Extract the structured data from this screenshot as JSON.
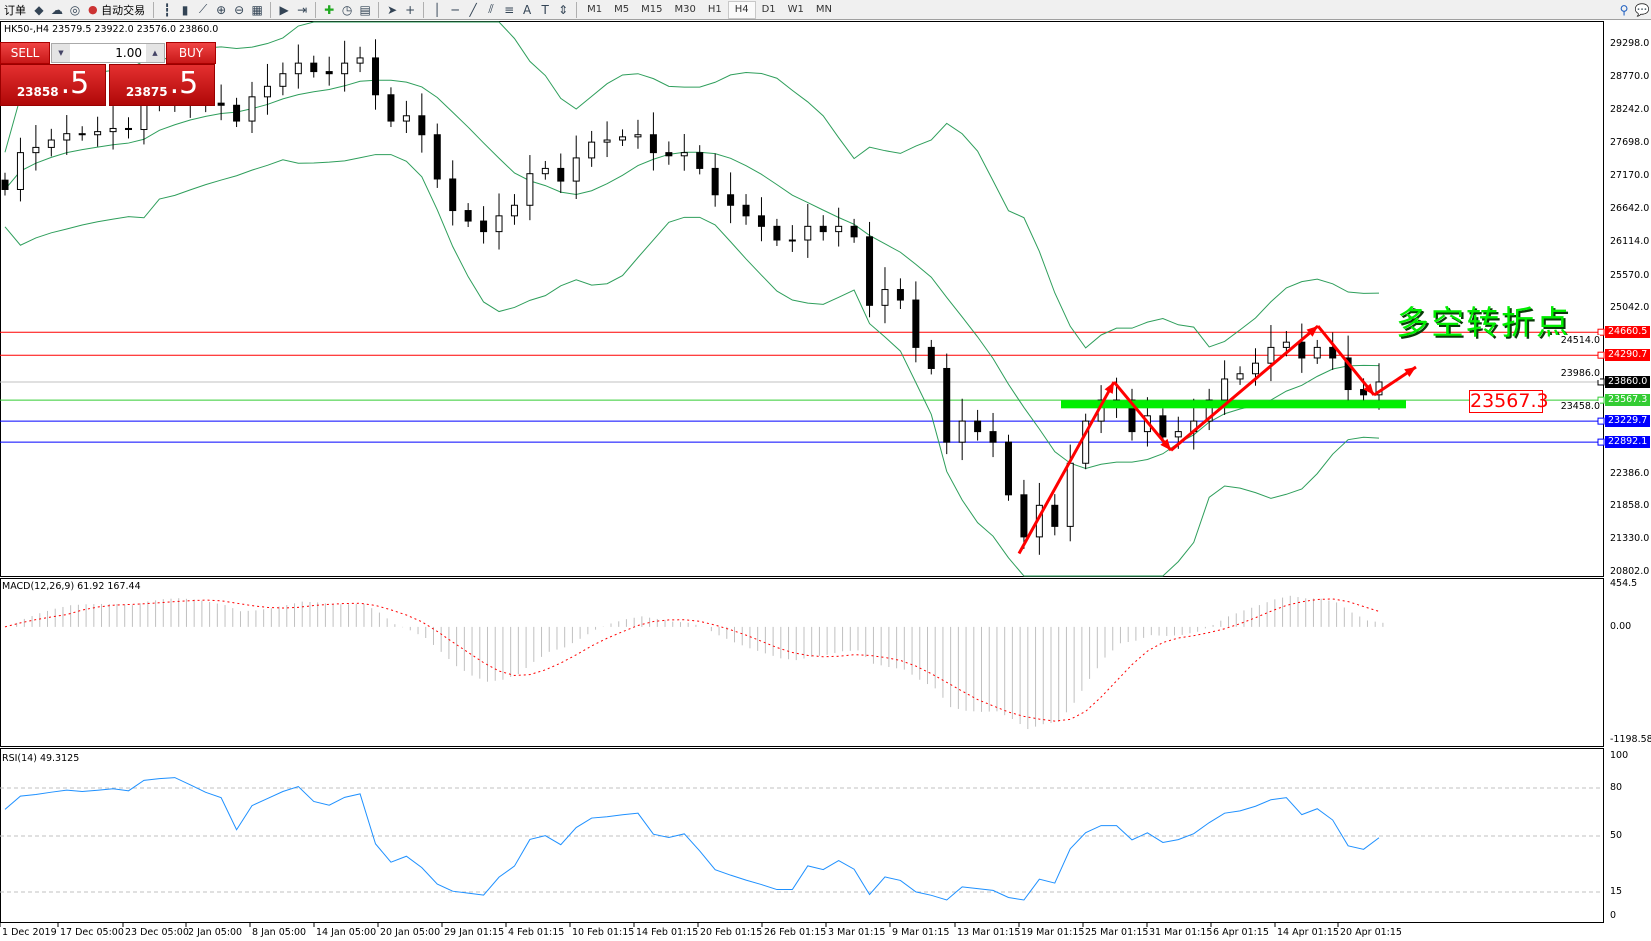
{
  "toolbar": {
    "new_order": "订单",
    "auto_trading": "自动交易",
    "timeframes": [
      "M1",
      "M5",
      "M15",
      "M30",
      "H1",
      "H4",
      "D1",
      "W1",
      "MN"
    ],
    "active_timeframe": "H4"
  },
  "chart_header": "HK50-,H4  23579.5 23922.0 23576.0 23860.0",
  "trade_panel": {
    "sell_label": "SELL",
    "buy_label": "BUY",
    "lots": "1.00",
    "sell_price_main": "23858",
    "sell_price_frac": ".5",
    "buy_price_main": "23875",
    "buy_price_frac": ".5"
  },
  "annotation": {
    "title": "多空转折点",
    "level_label": "23567.3"
  },
  "price_axis": [
    "29298.0",
    "28770.0",
    "28242.0",
    "27698.0",
    "27170.0",
    "26642.0",
    "26114.0",
    "25570.0",
    "25042.0",
    "24514.0",
    "23986.0",
    "23458.0",
    "22386.0",
    "21858.0",
    "21330.0",
    "20802.0"
  ],
  "price_lines": [
    {
      "value": 24660.5,
      "label": "24660.5",
      "color": "#ff0000"
    },
    {
      "value": 24290.7,
      "label": "24290.7",
      "color": "#ff0000"
    },
    {
      "value": 23860.0,
      "label": "23860.0",
      "color": "#000000",
      "line": "#c0c0c0"
    },
    {
      "value": 23567.3,
      "label": "23567.3",
      "color": "#33cc33"
    },
    {
      "value": 23229.7,
      "label": "23229.7",
      "color": "#0000ff"
    },
    {
      "value": 22892.1,
      "label": "22892.1",
      "color": "#0000ff"
    }
  ],
  "macd": {
    "label": "MACD(12,26,9) 61.92 167.44",
    "axis": [
      "454.5",
      "0.00",
      "-1198.58"
    ]
  },
  "rsi": {
    "label": "RSI(14) 49.3125",
    "axis": [
      "100",
      "80",
      "50",
      "15",
      "0"
    ]
  },
  "time_axis": [
    "1 Dec 2019",
    "17 Dec 05:00",
    "23 Dec 05:00",
    "2 Jan 05:00",
    "8 Jan 05:00",
    "14 Jan 05:00",
    "20 Jan 05:00",
    "29 Jan 01:15",
    "4 Feb 01:15",
    "10 Feb 01:15",
    "14 Feb 01:15",
    "20 Feb 01:15",
    "26 Feb 01:15",
    "3 Mar 01:15",
    "9 Mar 01:15",
    "13 Mar 01:15",
    "19 Mar 01:15",
    "25 Mar 01:15",
    "31 Mar 01:15",
    "6 Apr 01:15",
    "14 Apr 01:15",
    "20 Apr 01:15"
  ],
  "chart_data": {
    "type": "candlestick",
    "symbol": "HK50-",
    "timeframe": "H4",
    "price_range": [
      20802.0,
      29298.0
    ],
    "closes": [
      26957,
      27550,
      27634,
      27753,
      27855,
      27838,
      27888,
      27939,
      27922,
      28312,
      28397,
      28448,
      28397,
      28346,
      28312,
      28058,
      28448,
      28617,
      28820,
      28990,
      28854,
      28820,
      28990,
      29074,
      28481,
      28058,
      28143,
      27838,
      27126,
      26618,
      26449,
      26279,
      26533,
      26703,
      27211,
      27296,
      27092,
      27465,
      27719,
      27753,
      27804,
      27838,
      27550,
      27499,
      27550,
      27296,
      26872,
      26703,
      26533,
      26364,
      26144,
      26144,
      26364,
      26279,
      26364,
      26195,
      25093,
      25347,
      25178,
      24416,
      24077,
      22891,
      23230,
      23061,
      22891,
      22044,
      21367,
      21875,
      21536,
      22552,
      23230,
      23569,
      23569,
      23061,
      23315,
      22976,
      23061,
      23230,
      23569,
      23908,
      23992,
      24162,
      24416,
      24500,
      24246,
      24416,
      24246,
      23738,
      23653,
      23860
    ],
    "indicators": [
      "Bollinger Bands",
      "MACD(12,26,9)",
      "RSI(14)"
    ],
    "zigzag_prices": [
      21100,
      23860,
      22760,
      24760,
      23650,
      24100
    ],
    "support_zone": 23500,
    "colors": {
      "bands": "#2e9e5b",
      "rsi": "#1e90ff",
      "macd_signal": "#ff0000",
      "macd_hist": "#c0c0c0",
      "zigzag": "#ff0000",
      "zone": "#00ee00"
    }
  }
}
